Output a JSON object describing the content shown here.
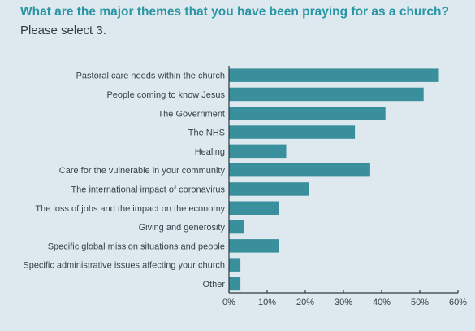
{
  "header": {
    "title": "What are the major themes that you have been praying for as a church?",
    "subtitle": "Please select 3."
  },
  "colors": {
    "bar": "#3a8f9c",
    "title": "#2a96a5",
    "background": "#dde9ee"
  },
  "chart_data": {
    "type": "bar",
    "orientation": "horizontal",
    "title": "What are the major themes that you have been praying for as a church?",
    "subtitle": "Please select 3.",
    "categories": [
      "Pastoral care needs within the church",
      "People coming to know Jesus",
      "The Government",
      "The NHS",
      "Healing",
      "Care for the vulnerable in your community",
      "The international impact of coronavirus",
      "The loss of jobs and the impact on the economy",
      "Giving and generosity",
      "Specific global mission situations and people",
      "Specific administrative issues affecting your church",
      "Other"
    ],
    "values": [
      55,
      51,
      41,
      33,
      15,
      37,
      21,
      13,
      4,
      13,
      3,
      3
    ],
    "xlim": [
      0,
      60
    ],
    "xticks": [
      "0%",
      "10%",
      "20%",
      "30%",
      "40%",
      "50%",
      "60%"
    ],
    "grid": false,
    "legend": false
  }
}
